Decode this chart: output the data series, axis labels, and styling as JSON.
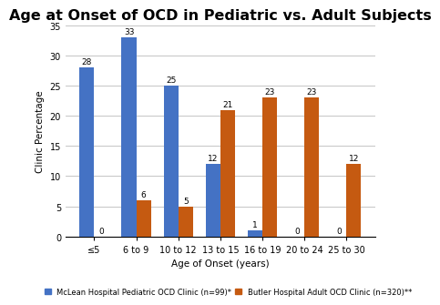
{
  "title": "Age at Onset of OCD in Pediatric vs. Adult Subjects",
  "xlabel": "Age of Onset (years)",
  "ylabel": "Clinic Percentage",
  "categories": [
    "≤5",
    "6 to 9",
    "10 to 12",
    "13 to 15",
    "16 to 19",
    "20 to 24",
    "25 to 30"
  ],
  "pediatric_values": [
    28,
    33,
    25,
    12,
    1,
    0,
    0
  ],
  "adult_values": [
    0,
    6,
    5,
    21,
    23,
    23,
    12
  ],
  "pediatric_color": "#4472C4",
  "adult_color": "#C55A11",
  "ylim": [
    0,
    35
  ],
  "yticks": [
    0,
    5,
    10,
    15,
    20,
    25,
    30,
    35
  ],
  "legend_pediatric": "McLean Hospital Pediatric OCD Clinic (n=99)*",
  "legend_adult": "Butler Hospital Adult OCD Clinic (n=320)**",
  "bar_width": 0.35,
  "title_fontsize": 11.5,
  "axis_label_fontsize": 7.5,
  "tick_fontsize": 7,
  "value_label_fontsize": 6.5,
  "legend_fontsize": 6.0,
  "background_color": "#ffffff",
  "grid_color": "#bbbbbb"
}
